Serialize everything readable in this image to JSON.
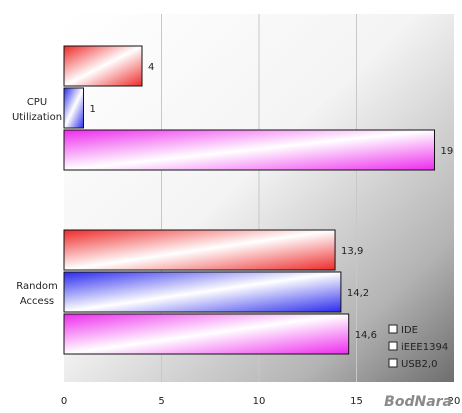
{
  "chart_data": {
    "type": "bar",
    "orientation": "horizontal",
    "title": "",
    "xlabel": "",
    "ylabel": "",
    "categories": [
      "CPU\nUtilization",
      "Random\nAccess"
    ],
    "series": [
      {
        "name": "IDE",
        "values": [
          4,
          13.9
        ],
        "value_labels": [
          "4",
          "13,9"
        ],
        "color": "#ee2a2a"
      },
      {
        "name": "iEEE1394",
        "values": [
          1,
          14.2
        ],
        "value_labels": [
          "1",
          "14,2"
        ],
        "color": "#2a2aee"
      },
      {
        "name": "USB2,0",
        "values": [
          19,
          14.6
        ],
        "value_labels": [
          "19",
          "14,6"
        ],
        "color": "#ee2aee"
      }
    ],
    "xlim": [
      0,
      20
    ],
    "xticks": [
      0,
      5,
      10,
      15,
      20
    ],
    "grid": true,
    "legend_position": "bottom-right"
  },
  "watermark": "BodNara",
  "colors": {
    "plot_bg_light": "#ffffff",
    "plot_bg_dark": "#6e6e6e",
    "gridline": "#c8c8c8",
    "bar_border": "#111111"
  }
}
